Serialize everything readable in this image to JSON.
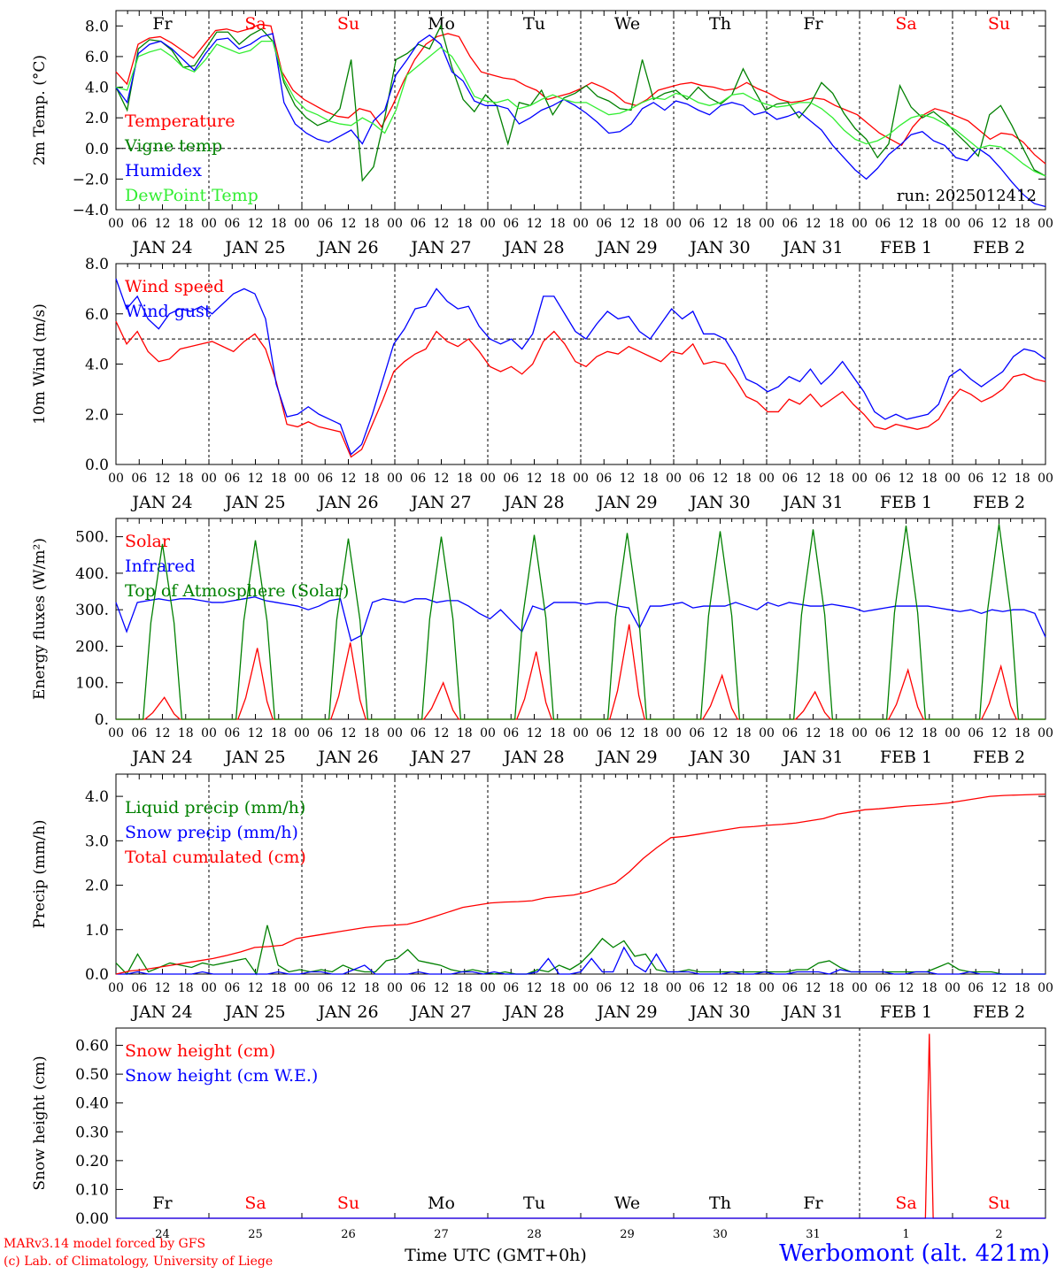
{
  "footer": {
    "credit_line1": "MARv3.14 model forced by GFS",
    "credit_line2": "(c) Lab. of Climatology, University of Liege",
    "station": "Werbomont (alt. 421m)",
    "xlabel": "Time UTC (GMT+0h)"
  },
  "time_axis": {
    "hour_ticks": [
      "00",
      "06",
      "12",
      "18"
    ],
    "day_labels": [
      "JAN 24",
      "JAN 25",
      "JAN 26",
      "JAN 27",
      "JAN 28",
      "JAN 29",
      "JAN 30",
      "JAN 31",
      "FEB  1",
      "FEB  2"
    ],
    "day_numbers": [
      "24",
      "25",
      "26",
      "27",
      "28",
      "29",
      "30",
      "31",
      "1",
      "2"
    ],
    "weekdays": [
      "Fr",
      "Sa",
      "Su",
      "Mo",
      "Tu",
      "We",
      "Th",
      "Fr",
      "Sa",
      "Su"
    ],
    "weekend_flags": [
      false,
      true,
      true,
      false,
      false,
      false,
      false,
      false,
      true,
      true
    ],
    "hours_per_step": 3,
    "total_hours": 240
  },
  "colors": {
    "red": "#ff0000",
    "green": "#008000",
    "blue": "#0000ff",
    "lime": "#33ee33",
    "weekend": "#ff0000",
    "weekday": "#000000"
  },
  "chart_data": [
    {
      "type": "line",
      "ylabel": "2m Temp. (°C)",
      "ylim": [
        -4,
        9
      ],
      "yticks": [
        -4,
        -2,
        0,
        2,
        4,
        6,
        8
      ],
      "ytick_labels": [
        "−4.0",
        "−2.0",
        "0.0",
        "2.0",
        "4.0",
        "6.0",
        "8.0"
      ],
      "ref_line": 0,
      "annotation": "run: 2025012412",
      "series": [
        {
          "name": "Temperature",
          "color": "red",
          "values": [
            5.0,
            4.2,
            6.8,
            7.2,
            7.3,
            6.9,
            6.4,
            5.9,
            6.8,
            7.7,
            7.8,
            7.6,
            7.8,
            8.1,
            8.0,
            5.0,
            3.8,
            3.2,
            2.8,
            2.4,
            2.1,
            2.0,
            2.6,
            2.4,
            1.4,
            2.8,
            4.4,
            5.8,
            6.8,
            7.3,
            7.5,
            7.3,
            6.0,
            5.0,
            4.8,
            4.6,
            4.5,
            4.1,
            3.8,
            3.2,
            3.4,
            3.6,
            3.9,
            4.3,
            4.0,
            3.6,
            3.0,
            2.8,
            3.2,
            3.8,
            4.0,
            4.2,
            4.3,
            4.1,
            4.0,
            3.8,
            3.9,
            4.3,
            3.9,
            3.6,
            3.2,
            3.0,
            3.1,
            3.3,
            3.2,
            2.8,
            2.5,
            2.2,
            1.6,
            1.0,
            0.6,
            0.2,
            1.4,
            2.2,
            2.6,
            2.4,
            2.1,
            1.8,
            1.2,
            0.6,
            1.0,
            0.9,
            0.4,
            -0.4,
            -1.0
          ]
        },
        {
          "name": "Vigne temp",
          "color": "green",
          "values": [
            4.0,
            2.5,
            6.5,
            7.1,
            7.0,
            6.4,
            5.3,
            5.4,
            6.5,
            7.6,
            7.6,
            6.8,
            7.4,
            7.8,
            7.0,
            4.3,
            2.8,
            2.0,
            1.5,
            1.8,
            2.6,
            5.8,
            -2.1,
            -1.2,
            2.0,
            5.8,
            6.2,
            6.8,
            6.5,
            8.0,
            5.3,
            3.2,
            2.4,
            3.5,
            2.8,
            0.3,
            3.0,
            2.8,
            3.8,
            2.2,
            3.3,
            3.6,
            4.1,
            3.4,
            3.1,
            2.6,
            2.5,
            5.8,
            3.2,
            3.6,
            3.8,
            3.2,
            4.0,
            3.3,
            2.9,
            3.5,
            5.2,
            3.8,
            2.5,
            2.9,
            3.0,
            2.0,
            2.9,
            4.3,
            3.6,
            2.3,
            1.3,
            0.6,
            -0.6,
            0.3,
            4.1,
            2.7,
            2.0,
            2.4,
            1.8,
            1.0,
            0.3,
            -0.5,
            2.2,
            2.8,
            1.5,
            0.0,
            -1.4,
            -1.8
          ]
        },
        {
          "name": "Humidex",
          "color": "blue",
          "values": [
            4.0,
            3.0,
            6.2,
            6.8,
            7.0,
            6.5,
            5.8,
            5.1,
            6.2,
            7.1,
            7.2,
            6.5,
            6.8,
            7.3,
            7.5,
            3.0,
            1.6,
            1.0,
            0.6,
            0.4,
            0.8,
            1.2,
            0.3,
            1.8,
            2.5,
            4.8,
            5.8,
            6.9,
            7.4,
            6.8,
            5.0,
            4.4,
            3.1,
            2.8,
            2.8,
            2.6,
            1.6,
            2.0,
            2.5,
            2.8,
            3.2,
            2.8,
            2.3,
            1.7,
            1.0,
            1.1,
            1.6,
            2.6,
            3.0,
            2.5,
            3.1,
            2.9,
            2.5,
            2.2,
            2.8,
            3.0,
            2.8,
            2.2,
            2.4,
            1.9,
            2.1,
            2.4,
            1.8,
            1.2,
            0.2,
            -0.6,
            -1.4,
            -2.0,
            -1.3,
            -0.4,
            0.2,
            0.9,
            1.1,
            0.5,
            0.2,
            -0.6,
            -0.8,
            0.0,
            -0.5,
            -1.3,
            -2.2,
            -3.0,
            -3.6,
            -3.8
          ]
        },
        {
          "name": "DewPoint Temp",
          "color": "lime",
          "values": [
            4.0,
            3.8,
            6.0,
            6.3,
            6.5,
            6.0,
            5.3,
            5.0,
            5.8,
            6.8,
            6.5,
            6.2,
            6.4,
            7.0,
            7.0,
            4.5,
            3.2,
            2.5,
            2.2,
            1.8,
            1.6,
            1.5,
            2.0,
            1.6,
            1.0,
            2.5,
            4.8,
            5.4,
            6.0,
            6.6,
            6.0,
            4.8,
            3.4,
            3.1,
            3.0,
            3.2,
            2.6,
            2.8,
            3.2,
            3.5,
            3.2,
            3.0,
            3.0,
            2.6,
            2.2,
            2.3,
            2.6,
            3.0,
            3.3,
            3.2,
            3.6,
            3.4,
            3.0,
            2.8,
            3.0,
            3.5,
            3.6,
            3.2,
            2.9,
            2.7,
            2.8,
            3.0,
            3.0,
            2.6,
            2.0,
            1.2,
            0.6,
            0.3,
            0.5,
            0.9,
            1.5,
            2.0,
            2.2,
            2.0,
            1.6,
            1.2,
            0.6,
            0.0,
            0.2,
            0.1,
            -0.4,
            -1.0,
            -1.5,
            -1.8
          ]
        }
      ]
    },
    {
      "type": "line",
      "ylabel": "10m Wind (m/s)",
      "ylim": [
        0,
        8
      ],
      "yticks": [
        0,
        2,
        4,
        6,
        8
      ],
      "ytick_labels": [
        "0.0",
        "2.0",
        "4.0",
        "6.0",
        "8.0"
      ],
      "ref_line": 5,
      "series": [
        {
          "name": "Wind speed",
          "color": "red",
          "values": [
            5.7,
            4.8,
            5.3,
            4.5,
            4.1,
            4.2,
            4.6,
            4.7,
            4.8,
            4.9,
            4.7,
            4.5,
            4.9,
            5.2,
            4.6,
            3.3,
            1.6,
            1.5,
            1.7,
            1.5,
            1.4,
            1.3,
            0.3,
            0.6,
            1.6,
            2.6,
            3.7,
            4.1,
            4.4,
            4.6,
            5.3,
            4.9,
            4.7,
            5.0,
            4.5,
            3.9,
            3.7,
            3.9,
            3.6,
            4.0,
            4.9,
            5.3,
            4.8,
            4.1,
            3.9,
            4.3,
            4.5,
            4.4,
            4.7,
            4.5,
            4.3,
            4.1,
            4.5,
            4.4,
            4.8,
            4.0,
            4.1,
            4.0,
            3.4,
            2.7,
            2.5,
            2.1,
            2.1,
            2.6,
            2.4,
            2.8,
            2.3,
            2.6,
            2.9,
            2.4,
            2.0,
            1.5,
            1.4,
            1.6,
            1.5,
            1.4,
            1.5,
            1.8,
            2.5,
            3.0,
            2.8,
            2.5,
            2.7,
            3.0,
            3.5,
            3.6,
            3.4,
            3.3
          ]
        },
        {
          "name": "Wind gust",
          "color": "blue",
          "values": [
            7.4,
            6.2,
            6.7,
            5.8,
            5.4,
            6.0,
            6.2,
            6.1,
            6.3,
            6.0,
            6.4,
            6.8,
            7.0,
            6.8,
            5.8,
            3.2,
            1.9,
            2.0,
            2.3,
            2.0,
            1.8,
            1.6,
            0.4,
            0.8,
            2.0,
            3.4,
            4.8,
            5.4,
            6.2,
            6.3,
            7.0,
            6.5,
            6.2,
            6.3,
            5.5,
            5.0,
            4.8,
            5.0,
            4.6,
            5.2,
            6.7,
            6.7,
            6.0,
            5.3,
            5.0,
            5.6,
            6.1,
            5.8,
            5.9,
            5.3,
            5.0,
            5.6,
            6.2,
            5.8,
            6.1,
            5.2,
            5.2,
            5.0,
            4.3,
            3.4,
            3.2,
            2.9,
            3.1,
            3.5,
            3.3,
            3.8,
            3.2,
            3.6,
            4.1,
            3.5,
            2.9,
            2.1,
            1.8,
            2.0,
            1.8,
            1.9,
            2.0,
            2.4,
            3.5,
            3.8,
            3.4,
            3.1,
            3.4,
            3.7,
            4.3,
            4.6,
            4.5,
            4.2
          ]
        }
      ]
    },
    {
      "type": "line",
      "ylabel": "Energy fluxes (W/m²)",
      "ylim": [
        0,
        550
      ],
      "yticks": [
        0,
        100,
        200,
        300,
        400,
        500
      ],
      "ytick_labels": [
        "0.",
        "100.",
        "200.",
        "300.",
        "400.",
        "500."
      ],
      "series": [
        {
          "name": "Solar",
          "color": "red",
          "peaks": [
            60,
            195,
            210,
            100,
            185,
            260,
            120,
            75,
            135,
            145
          ]
        },
        {
          "name": "Infrared",
          "color": "blue",
          "values": [
            320,
            240,
            320,
            325,
            330,
            325,
            330,
            330,
            325,
            320,
            320,
            325,
            330,
            335,
            325,
            320,
            315,
            310,
            300,
            310,
            325,
            330,
            215,
            230,
            320,
            330,
            325,
            320,
            330,
            330,
            320,
            325,
            325,
            310,
            290,
            275,
            300,
            270,
            240,
            310,
            300,
            320,
            320,
            320,
            315,
            320,
            320,
            310,
            305,
            250,
            310,
            310,
            315,
            320,
            305,
            310,
            310,
            310,
            320,
            310,
            300,
            320,
            310,
            320,
            315,
            310,
            310,
            315,
            310,
            305,
            295,
            300,
            305,
            310,
            310,
            310,
            310,
            305,
            300,
            295,
            300,
            290,
            300,
            295,
            300,
            300,
            290,
            225
          ]
        },
        {
          "name": "Top of Atmosphere (Solar)",
          "color": "green",
          "peaks": [
            480,
            490,
            495,
            500,
            505,
            510,
            515,
            520,
            530,
            535
          ]
        }
      ]
    },
    {
      "type": "line",
      "ylabel": "Precip (mm/h)",
      "ylim": [
        0,
        4.5
      ],
      "yticks": [
        0,
        1,
        2,
        3,
        4
      ],
      "ytick_labels": [
        "0.0",
        "1.0",
        "2.0",
        "3.0",
        "4.0"
      ],
      "series": [
        {
          "name": "Liquid precip (mm/h)",
          "color": "green",
          "values": [
            0.25,
            0.0,
            0.45,
            0.05,
            0.15,
            0.25,
            0.2,
            0.15,
            0.25,
            0.2,
            0.25,
            0.3,
            0.35,
            0.0,
            1.1,
            0.2,
            0.05,
            0.1,
            0.05,
            0.1,
            0.05,
            0.2,
            0.1,
            0.05,
            0.05,
            0.3,
            0.35,
            0.55,
            0.3,
            0.25,
            0.2,
            0.1,
            0.05,
            0.1,
            0.05,
            0.0,
            0.05,
            0.0,
            0.0,
            0.1,
            0.05,
            0.2,
            0.1,
            0.25,
            0.5,
            0.8,
            0.6,
            0.75,
            0.4,
            0.45,
            0.1,
            0.05,
            0.05,
            0.1,
            0.05,
            0.05,
            0.05,
            0.05,
            0.05,
            0.05,
            0.05,
            0.05,
            0.05,
            0.1,
            0.1,
            0.25,
            0.3,
            0.15,
            0.05,
            0.05,
            0.05,
            0.05,
            0.05,
            0.05,
            0.05,
            0.05,
            0.15,
            0.25,
            0.1,
            0.05,
            0.05,
            0.05,
            0.0,
            0.0,
            0.0,
            0.0,
            0.0
          ]
        },
        {
          "name": "Snow precip (mm/h)",
          "color": "blue",
          "values": [
            0.0,
            0.0,
            0.05,
            0.0,
            0.0,
            0.0,
            0.0,
            0.0,
            0.05,
            0.0,
            0.0,
            0.0,
            0.0,
            0.0,
            0.0,
            0.05,
            0.0,
            0.0,
            0.05,
            0.05,
            0.0,
            0.0,
            0.1,
            0.2,
            0.0,
            0.0,
            0.0,
            0.0,
            0.05,
            0.0,
            0.0,
            0.0,
            0.05,
            0.05,
            0.0,
            0.05,
            0.0,
            0.0,
            0.0,
            0.05,
            0.35,
            0.0,
            0.0,
            0.05,
            0.35,
            0.05,
            0.05,
            0.6,
            0.2,
            0.05,
            0.45,
            0.05,
            0.05,
            0.05,
            0.0,
            0.0,
            0.0,
            0.05,
            0.0,
            0.0,
            0.05,
            0.0,
            0.0,
            0.05,
            0.05,
            0.05,
            0.0,
            0.1,
            0.05,
            0.05,
            0.05,
            0.05,
            0.0,
            0.0,
            0.05,
            0.05,
            0.0,
            0.0,
            0.0,
            0.05,
            0.0,
            0.0,
            0.0,
            0.0,
            0.0,
            0.0,
            0.0
          ]
        },
        {
          "name": "Total cumulated (cm)",
          "color": "red",
          "values": [
            0.0,
            0.07,
            0.1,
            0.15,
            0.2,
            0.25,
            0.3,
            0.35,
            0.42,
            0.5,
            0.6,
            0.62,
            0.65,
            0.8,
            0.85,
            0.9,
            0.95,
            1.0,
            1.05,
            1.08,
            1.1,
            1.12,
            1.2,
            1.3,
            1.4,
            1.5,
            1.55,
            1.6,
            1.62,
            1.63,
            1.65,
            1.72,
            1.75,
            1.78,
            1.85,
            1.95,
            2.05,
            2.3,
            2.6,
            2.85,
            3.07,
            3.1,
            3.15,
            3.2,
            3.25,
            3.3,
            3.32,
            3.35,
            3.37,
            3.4,
            3.45,
            3.5,
            3.6,
            3.65,
            3.7,
            3.72,
            3.75,
            3.78,
            3.8,
            3.82,
            3.85,
            3.9,
            3.95,
            4.0,
            4.02,
            4.03,
            4.04,
            4.05
          ]
        }
      ]
    },
    {
      "type": "line",
      "ylabel": "Snow height (cm)",
      "ylim": [
        0,
        0.66
      ],
      "yticks": [
        0,
        0.1,
        0.2,
        0.3,
        0.4,
        0.5,
        0.6
      ],
      "ytick_labels": [
        "0.00",
        "0.10",
        "0.20",
        "0.30",
        "0.40",
        "0.50",
        "0.60"
      ],
      "series": [
        {
          "name": "Snow height (cm)",
          "color": "red",
          "spike": {
            "hour": 210,
            "value": 0.64
          }
        },
        {
          "name": "Snow height (cm W.E.)",
          "color": "blue",
          "spike": {
            "hour": 210,
            "value": 0.0
          }
        }
      ]
    }
  ]
}
